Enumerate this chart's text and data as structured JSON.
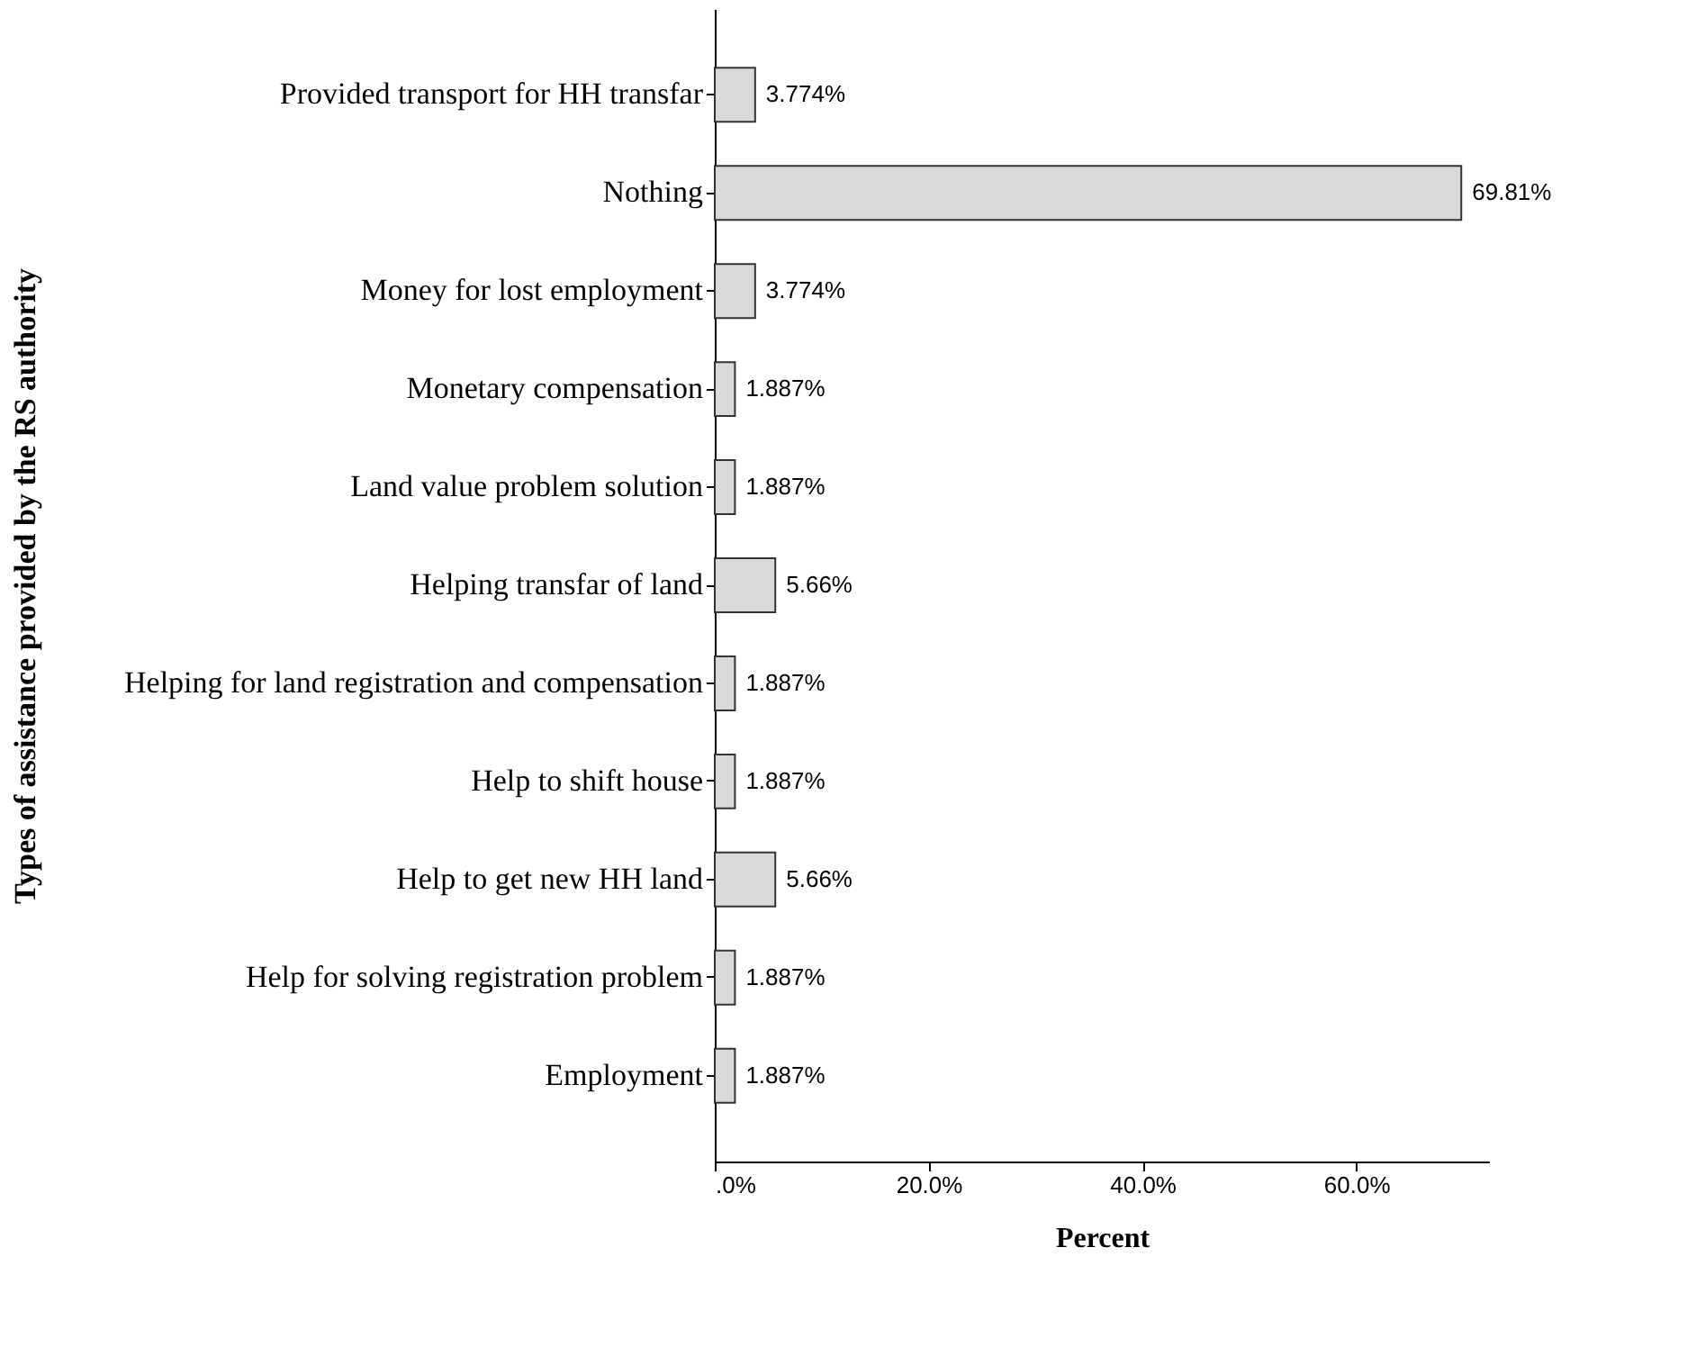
{
  "chart_data": {
    "type": "bar",
    "orientation": "horizontal",
    "xlabel": "Percent",
    "ylabel": "Types of assistance provided by the RS authority",
    "categories": [
      "Provided transport for HH transfar",
      "Nothing",
      "Money for lost employment",
      "Monetary compensation",
      "Land value problem solution",
      "Helping transfar of land",
      "Helping for land registration and compensation",
      "Help to shift house",
      "Help to get new HH land",
      "Help for solving registration problem",
      "Employment"
    ],
    "values": [
      3.774,
      69.81,
      3.774,
      1.887,
      1.887,
      5.66,
      1.887,
      1.887,
      5.66,
      1.887,
      1.887
    ],
    "value_labels": [
      "3.774%",
      "69.81%",
      "3.774%",
      "1.887%",
      "1.887%",
      "5.66%",
      "1.887%",
      "1.887%",
      "5.66%",
      "1.887%",
      "1.887%"
    ],
    "color": "#d9d9d9",
    "xlim": [
      0,
      72.4
    ],
    "xticks": [
      {
        "value": 0,
        "label": ".0%"
      },
      {
        "value": 20,
        "label": "20.0%"
      },
      {
        "value": 40,
        "label": "40.0%"
      },
      {
        "value": 60,
        "label": "60.0%"
      }
    ],
    "grid": false
  }
}
